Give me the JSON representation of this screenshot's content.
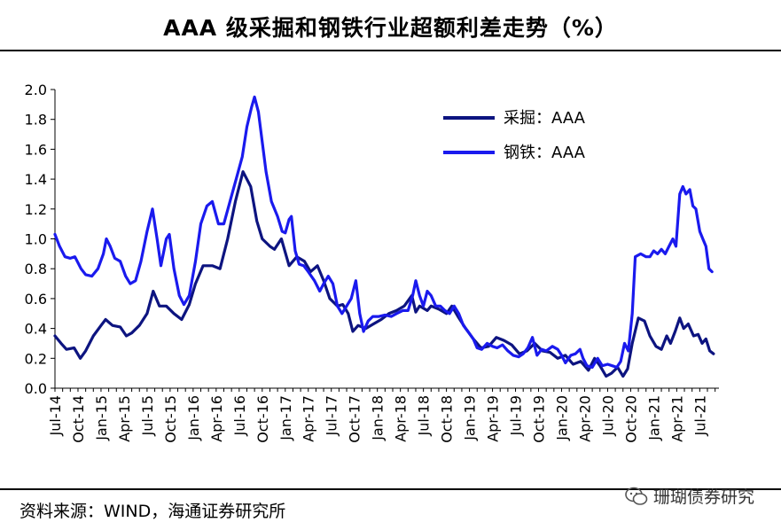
{
  "title": "AAA 级采掘和钢铁行业超额利差走势（%）",
  "source": "资料来源：WIND，海通证券研究所",
  "watermark": "珊瑚债券研究",
  "chart_data": {
    "type": "line",
    "title": "AAA 级采掘和钢铁行业超额利差走势（%）",
    "xlabel": "",
    "ylabel": "",
    "ylim": [
      0,
      2.0
    ],
    "yticks": [
      "0.0",
      "0.2",
      "0.4",
      "0.6",
      "0.8",
      "1.0",
      "1.2",
      "1.4",
      "1.6",
      "1.8",
      "2.0"
    ],
    "xlim": [
      0,
      85
    ],
    "x_tick_labels": [
      "Jul-14",
      "Oct-14",
      "Jan-15",
      "Apr-15",
      "Jul-15",
      "Oct-15",
      "Jan-16",
      "Apr-16",
      "Jul-16",
      "Oct-16",
      "Jan-17",
      "Apr-17",
      "Jul-17",
      "Oct-17",
      "Jan-18",
      "Apr-18",
      "Jul-18",
      "Oct-18",
      "Jan-19",
      "Apr-19",
      "Jul-19",
      "Oct-19",
      "Jan-20",
      "Apr-20",
      "Jul-20",
      "Oct-20",
      "Jan-21",
      "Apr-21",
      "Jul-21"
    ],
    "grid": false,
    "legend_position": "top-right",
    "series": [
      {
        "name": "采掘：AAA",
        "color": "#0d1480",
        "points": [
          [
            0,
            0.35
          ],
          [
            0.8,
            0.3
          ],
          [
            1.5,
            0.26
          ],
          [
            2.5,
            0.27
          ],
          [
            3.3,
            0.2
          ],
          [
            4,
            0.25
          ],
          [
            5,
            0.35
          ],
          [
            6,
            0.42
          ],
          [
            6.6,
            0.46
          ],
          [
            7.5,
            0.42
          ],
          [
            8.5,
            0.41
          ],
          [
            9.3,
            0.35
          ],
          [
            10,
            0.37
          ],
          [
            11,
            0.42
          ],
          [
            12,
            0.5
          ],
          [
            12.8,
            0.65
          ],
          [
            13.6,
            0.55
          ],
          [
            14.5,
            0.55
          ],
          [
            15.5,
            0.5
          ],
          [
            16.5,
            0.46
          ],
          [
            17.5,
            0.56
          ],
          [
            18.3,
            0.7
          ],
          [
            19.3,
            0.82
          ],
          [
            20.5,
            0.82
          ],
          [
            21.5,
            0.8
          ],
          [
            22.5,
            1.0
          ],
          [
            23.5,
            1.25
          ],
          [
            24.5,
            1.45
          ],
          [
            25.5,
            1.35
          ],
          [
            26.3,
            1.12
          ],
          [
            27,
            1.0
          ],
          [
            28,
            0.95
          ],
          [
            28.6,
            0.93
          ],
          [
            29.5,
            1.0
          ],
          [
            30.5,
            0.82
          ],
          [
            31.5,
            0.88
          ],
          [
            32.5,
            0.85
          ],
          [
            33.3,
            0.78
          ],
          [
            34.2,
            0.82
          ],
          [
            35,
            0.72
          ],
          [
            35.8,
            0.6
          ],
          [
            36.8,
            0.55
          ],
          [
            37.5,
            0.56
          ],
          [
            38.2,
            0.5
          ],
          [
            38.8,
            0.38
          ],
          [
            39.5,
            0.42
          ],
          [
            40.5,
            0.4
          ],
          [
            41.5,
            0.43
          ],
          [
            42.5,
            0.46
          ],
          [
            43.5,
            0.5
          ],
          [
            44.5,
            0.52
          ],
          [
            45.5,
            0.55
          ],
          [
            46.5,
            0.62
          ],
          [
            47,
            0.51
          ],
          [
            47.5,
            0.55
          ],
          [
            48.5,
            0.52
          ],
          [
            49,
            0.55
          ],
          [
            50,
            0.53
          ],
          [
            51,
            0.5
          ],
          [
            51.7,
            0.55
          ],
          [
            52.5,
            0.48
          ],
          [
            53.5,
            0.4
          ],
          [
            54.5,
            0.33
          ],
          [
            55.5,
            0.27
          ],
          [
            56.5,
            0.28
          ],
          [
            57.5,
            0.34
          ],
          [
            58.5,
            0.32
          ],
          [
            59.5,
            0.29
          ],
          [
            60.5,
            0.23
          ],
          [
            61.5,
            0.25
          ],
          [
            62.5,
            0.3
          ],
          [
            63.5,
            0.25
          ],
          [
            64.5,
            0.24
          ],
          [
            65.5,
            0.2
          ],
          [
            66.5,
            0.22
          ],
          [
            67.5,
            0.16
          ],
          [
            68.5,
            0.18
          ],
          [
            69.5,
            0.12
          ],
          [
            70.3,
            0.2
          ],
          [
            71,
            0.15
          ],
          [
            71.8,
            0.08
          ],
          [
            72.5,
            0.1
          ],
          [
            73.3,
            0.14
          ],
          [
            74,
            0.08
          ],
          [
            74.6,
            0.13
          ],
          [
            75.2,
            0.3
          ],
          [
            76,
            0.47
          ],
          [
            76.8,
            0.45
          ],
          [
            77.5,
            0.35
          ],
          [
            78.3,
            0.28
          ],
          [
            79,
            0.26
          ],
          [
            79.7,
            0.35
          ],
          [
            80.2,
            0.3
          ],
          [
            80.8,
            0.38
          ],
          [
            81.4,
            0.47
          ],
          [
            81.9,
            0.4
          ],
          [
            82.5,
            0.43
          ],
          [
            83.2,
            0.35
          ],
          [
            83.8,
            0.36
          ],
          [
            84.3,
            0.3
          ],
          [
            84.8,
            0.33
          ],
          [
            85.3,
            0.25
          ],
          [
            85.8,
            0.23
          ]
        ]
      },
      {
        "name": "钢铁：AAA",
        "color": "#1a1aee",
        "points": [
          [
            0,
            1.03
          ],
          [
            0.6,
            0.95
          ],
          [
            1.3,
            0.88
          ],
          [
            2,
            0.87
          ],
          [
            2.6,
            0.88
          ],
          [
            3.4,
            0.8
          ],
          [
            4,
            0.76
          ],
          [
            4.8,
            0.75
          ],
          [
            5.6,
            0.8
          ],
          [
            6.3,
            0.9
          ],
          [
            6.7,
            1.0
          ],
          [
            7.2,
            0.95
          ],
          [
            7.8,
            0.87
          ],
          [
            8.5,
            0.85
          ],
          [
            9.2,
            0.75
          ],
          [
            9.8,
            0.7
          ],
          [
            10.5,
            0.72
          ],
          [
            11.2,
            0.85
          ],
          [
            12,
            1.05
          ],
          [
            12.7,
            1.2
          ],
          [
            13.3,
            1.0
          ],
          [
            13.8,
            0.82
          ],
          [
            14.5,
            1.0
          ],
          [
            14.9,
            1.03
          ],
          [
            15.5,
            0.8
          ],
          [
            16.2,
            0.62
          ],
          [
            16.8,
            0.56
          ],
          [
            17.5,
            0.62
          ],
          [
            18.3,
            0.85
          ],
          [
            19,
            1.1
          ],
          [
            19.8,
            1.22
          ],
          [
            20.5,
            1.25
          ],
          [
            21.3,
            1.1
          ],
          [
            22,
            1.1
          ],
          [
            22.8,
            1.25
          ],
          [
            23.6,
            1.4
          ],
          [
            24.4,
            1.55
          ],
          [
            25,
            1.75
          ],
          [
            25.6,
            1.88
          ],
          [
            26,
            1.95
          ],
          [
            26.5,
            1.85
          ],
          [
            27,
            1.65
          ],
          [
            27.5,
            1.45
          ],
          [
            28.2,
            1.25
          ],
          [
            29,
            1.15
          ],
          [
            29.6,
            1.05
          ],
          [
            30,
            1.04
          ],
          [
            30.5,
            1.13
          ],
          [
            30.8,
            1.15
          ],
          [
            31.3,
            0.92
          ],
          [
            31.8,
            0.83
          ],
          [
            32.4,
            0.82
          ],
          [
            33,
            0.78
          ],
          [
            33.8,
            0.72
          ],
          [
            34.5,
            0.65
          ],
          [
            35,
            0.7
          ],
          [
            35.6,
            0.75
          ],
          [
            36.2,
            0.7
          ],
          [
            36.8,
            0.55
          ],
          [
            37.4,
            0.5
          ],
          [
            38,
            0.55
          ],
          [
            38.6,
            0.6
          ],
          [
            39.2,
            0.72
          ],
          [
            39.7,
            0.5
          ],
          [
            40.2,
            0.38
          ],
          [
            40.8,
            0.45
          ],
          [
            41.4,
            0.48
          ],
          [
            42.2,
            0.48
          ],
          [
            43,
            0.49
          ],
          [
            43.8,
            0.48
          ],
          [
            44.5,
            0.5
          ],
          [
            45.3,
            0.52
          ],
          [
            46,
            0.52
          ],
          [
            46.6,
            0.62
          ],
          [
            47,
            0.72
          ],
          [
            47.5,
            0.62
          ],
          [
            48,
            0.55
          ],
          [
            48.5,
            0.65
          ],
          [
            49,
            0.62
          ],
          [
            49.6,
            0.55
          ],
          [
            50.2,
            0.55
          ],
          [
            50.8,
            0.52
          ],
          [
            51.4,
            0.5
          ],
          [
            52,
            0.55
          ],
          [
            52.6,
            0.5
          ],
          [
            53.2,
            0.42
          ],
          [
            53.8,
            0.38
          ],
          [
            54.5,
            0.33
          ],
          [
            55,
            0.27
          ],
          [
            55.6,
            0.26
          ],
          [
            56.3,
            0.3
          ],
          [
            57,
            0.28
          ],
          [
            57.6,
            0.27
          ],
          [
            58.3,
            0.29
          ],
          [
            59,
            0.25
          ],
          [
            59.7,
            0.22
          ],
          [
            60.4,
            0.21
          ],
          [
            61,
            0.23
          ],
          [
            61.6,
            0.27
          ],
          [
            62.2,
            0.34
          ],
          [
            62.8,
            0.22
          ],
          [
            63.4,
            0.26
          ],
          [
            64,
            0.25
          ],
          [
            64.8,
            0.28
          ],
          [
            65.5,
            0.26
          ],
          [
            66,
            0.22
          ],
          [
            66.5,
            0.17
          ],
          [
            67.2,
            0.22
          ],
          [
            67.8,
            0.23
          ],
          [
            68.4,
            0.26
          ],
          [
            68.8,
            0.2
          ],
          [
            69.3,
            0.15
          ],
          [
            70,
            0.14
          ],
          [
            70.7,
            0.2
          ],
          [
            71.3,
            0.15
          ],
          [
            72,
            0.16
          ],
          [
            72.6,
            0.15
          ],
          [
            73.2,
            0.14
          ],
          [
            73.7,
            0.18
          ],
          [
            74.2,
            0.3
          ],
          [
            74.7,
            0.25
          ],
          [
            75.2,
            0.5
          ],
          [
            75.6,
            0.88
          ],
          [
            76.3,
            0.9
          ],
          [
            77,
            0.88
          ],
          [
            77.5,
            0.88
          ],
          [
            78,
            0.92
          ],
          [
            78.5,
            0.9
          ],
          [
            79,
            0.93
          ],
          [
            79.5,
            0.9
          ],
          [
            80,
            0.95
          ],
          [
            80.5,
            1.0
          ],
          [
            80.9,
            0.95
          ],
          [
            81.4,
            1.3
          ],
          [
            81.8,
            1.35
          ],
          [
            82.2,
            1.3
          ],
          [
            82.7,
            1.33
          ],
          [
            83.1,
            1.22
          ],
          [
            83.5,
            1.2
          ],
          [
            84,
            1.05
          ],
          [
            84.4,
            1.0
          ],
          [
            84.8,
            0.95
          ],
          [
            85.2,
            0.8
          ],
          [
            85.6,
            0.78
          ]
        ]
      }
    ]
  }
}
